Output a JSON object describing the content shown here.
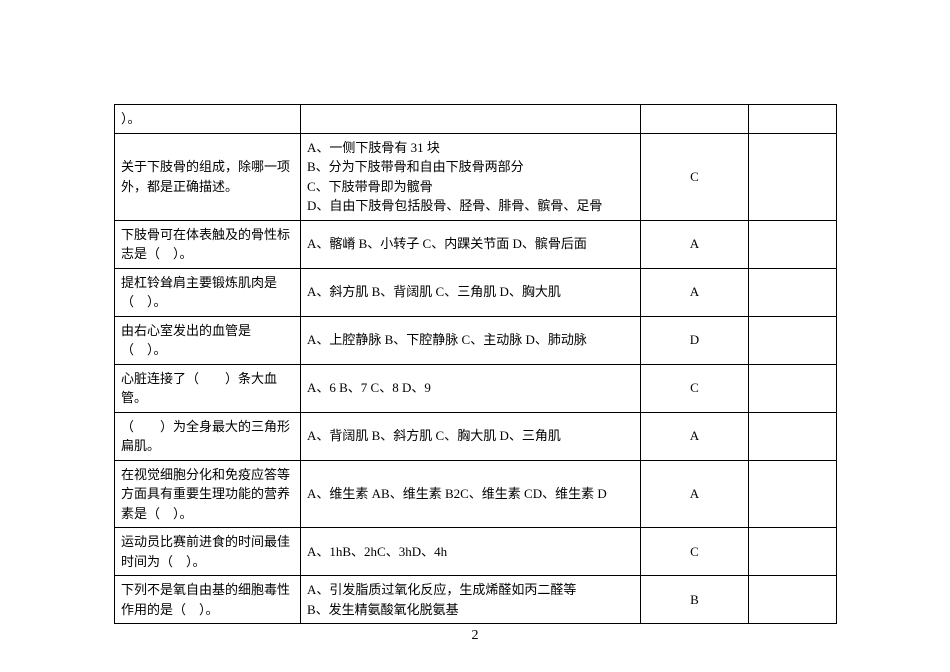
{
  "table": {
    "rows": [
      {
        "q": "）。",
        "opts": "",
        "ans": "",
        "blank": ""
      },
      {
        "q": "关于下肢骨的组成，除哪一项外，都是正确描述。",
        "opts": "A、一侧下肢骨有 31 块\nB、分为下肢带骨和自由下肢骨两部分\nC、下肢带骨即为髋骨\nD、自由下肢骨包括股骨、胫骨、腓骨、髌骨、足骨",
        "ans": "C",
        "blank": ""
      },
      {
        "q": "下肢骨可在体表触及的骨性标志是（　）。",
        "opts": "A、髂嵴 B、小转子 C、内踝关节面 D、髌骨后面",
        "ans": "A",
        "blank": ""
      },
      {
        "q": "提杠铃耸肩主要锻炼肌肉是（　）。",
        "opts": "A、斜方肌 B、背阔肌 C、三角肌 D、胸大肌",
        "ans": "A",
        "blank": ""
      },
      {
        "q": "由右心室发出的血管是（　）。",
        "opts": "A、上腔静脉 B、下腔静脉 C、主动脉 D、肺动脉",
        "ans": "D",
        "blank": ""
      },
      {
        "q": "心脏连接了（　　）条大血管。",
        "opts": "A、6 B、7 C、8 D、9",
        "ans": "C",
        "blank": ""
      },
      {
        "q": "（　　）为全身最大的三角形扁肌。",
        "opts": "A、背阔肌 B、斜方肌 C、胸大肌 D、三角肌",
        "ans": "A",
        "blank": ""
      },
      {
        "q": "在视觉细胞分化和免疫应答等方面具有重要生理功能的营养素是（　）。",
        "opts": "A、维生素 AB、维生素 B2C、维生素 CD、维生素 D",
        "ans": "A",
        "blank": ""
      },
      {
        "q": "运动员比赛前进食的时间最佳时间为（　）。",
        "opts": "A、1hB、2hC、3hD、4h",
        "ans": "C",
        "blank": ""
      },
      {
        "q": "下列不是氧自由基的细胞毒性作用的是（　）。",
        "opts": "A、引发脂质过氧化反应，生成烯醛如丙二醛等\nB、发生精氨酸氧化脱氨基",
        "ans": "B",
        "blank": ""
      }
    ]
  },
  "page_number": "2"
}
